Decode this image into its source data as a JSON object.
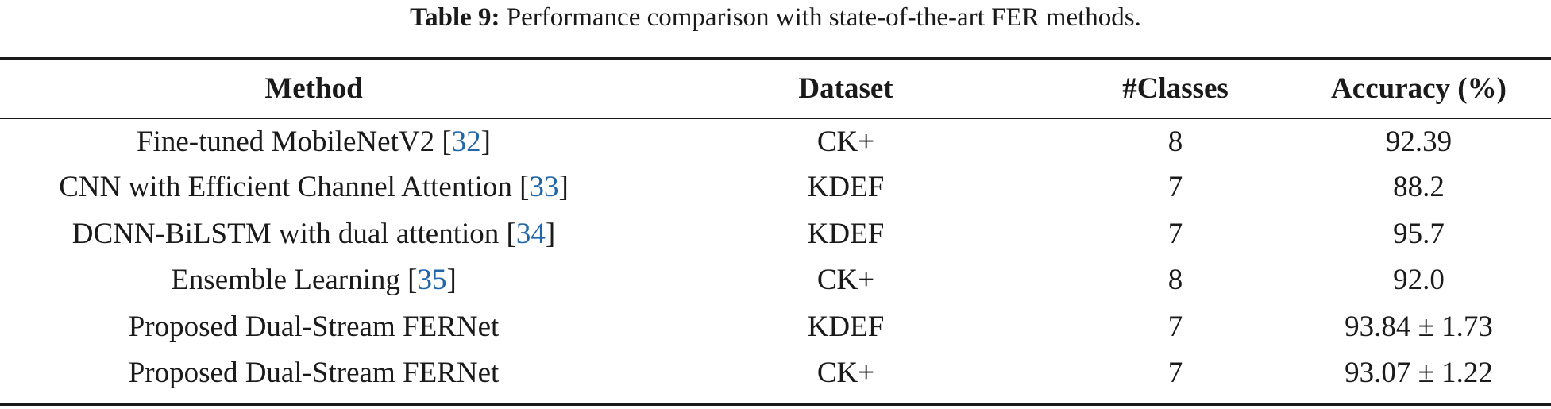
{
  "caption": {
    "label": "Table 9:",
    "text": "Performance comparison with state-of-the-art FER methods."
  },
  "table": {
    "headers": [
      "Method",
      "Dataset",
      "#Classes",
      "Accuracy (%)"
    ],
    "rows": [
      {
        "method": "Fine-tuned MobileNetV2",
        "ref": "32",
        "dataset": "CK+",
        "classes": "8",
        "accuracy": "92.39"
      },
      {
        "method": "CNN with Efficient Channel Attention",
        "ref": "33",
        "dataset": "KDEF",
        "classes": "7",
        "accuracy": "88.2"
      },
      {
        "method": "DCNN-BiLSTM with dual attention",
        "ref": "34",
        "dataset": "KDEF",
        "classes": "7",
        "accuracy": "95.7"
      },
      {
        "method": "Ensemble Learning",
        "ref": "35",
        "dataset": "CK+",
        "classes": "8",
        "accuracy": "92.0"
      },
      {
        "method": "Proposed Dual-Stream FERNet",
        "ref": "",
        "dataset": "KDEF",
        "classes": "7",
        "accuracy": "93.84 ± 1.73"
      },
      {
        "method": "Proposed Dual-Stream FERNet",
        "ref": "",
        "dataset": "CK+",
        "classes": "7",
        "accuracy": "93.07 ± 1.22"
      }
    ]
  }
}
